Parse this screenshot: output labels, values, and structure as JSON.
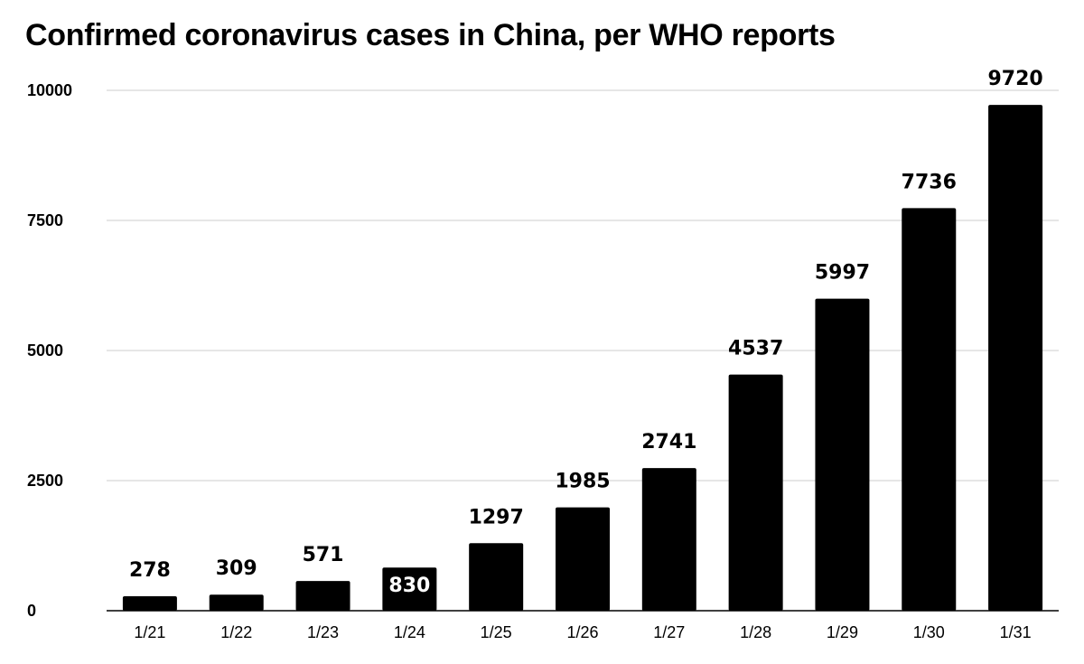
{
  "chart_data": {
    "type": "bar",
    "title": "Confirmed coronavirus cases in China, per WHO reports",
    "xlabel": "",
    "ylabel": "",
    "categories": [
      "1/21",
      "1/22",
      "1/23",
      "1/24",
      "1/25",
      "1/26",
      "1/27",
      "1/28",
      "1/29",
      "1/30",
      "1/31"
    ],
    "values": [
      278,
      309,
      571,
      830,
      1297,
      1985,
      2741,
      4537,
      5997,
      7736,
      9720
    ],
    "ylim": [
      0,
      10000
    ],
    "yticks": [
      0,
      2500,
      5000,
      7500,
      10000
    ],
    "grid": true,
    "legend": "none",
    "bar_color": "#000000",
    "label_color_outside": "#000000",
    "label_color_inside": "#ffffff"
  }
}
